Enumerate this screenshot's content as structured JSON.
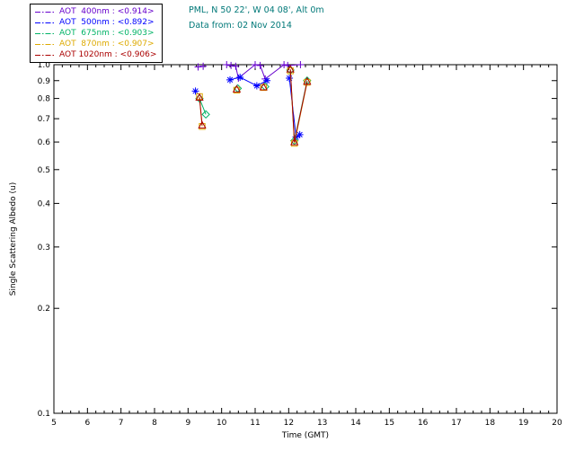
{
  "header": {
    "location": "PML, N 50 22', W 04 08', Alt 0m",
    "data_from": "Data from: 02 Nov 2014",
    "color": "#007878"
  },
  "legend": {
    "items": [
      {
        "label": "AOT  400nm : <0.914>",
        "color": "#6600cc"
      },
      {
        "label": "AOT  500nm : <0.892>",
        "color": "#0000ff"
      },
      {
        "label": "AOT  675nm : <0.903>",
        "color": "#00b366"
      },
      {
        "label": "AOT  870nm : <0.907>",
        "color": "#ddaa00"
      },
      {
        "label": "AOT 1020nm : <0.906>",
        "color": "#aa0000"
      }
    ]
  },
  "chart_data": {
    "type": "line",
    "title": "",
    "xlabel": "Time (GMT)",
    "ylabel": "Single Scattering Albedo (u)",
    "xlim": [
      5,
      20
    ],
    "ylim": [
      0.1,
      1.0
    ],
    "yscale": "log",
    "x_ticks": [
      5,
      6,
      7,
      8,
      9,
      10,
      11,
      12,
      13,
      14,
      15,
      16,
      17,
      18,
      19,
      20
    ],
    "y_ticks": [
      1.0,
      0.9,
      0.8,
      0.7,
      0.6,
      0.5,
      0.4,
      0.3,
      0.2,
      0.1
    ],
    "grid": false,
    "legend_position": "top-left",
    "gap_threshold": 0.6,
    "series": [
      {
        "name": "AOT 400nm",
        "mean": "<0.914>",
        "color": "#6600cc",
        "marker": "plus",
        "points": [
          [
            9.3,
            0.985
          ],
          [
            9.45,
            0.99
          ],
          [
            10.15,
            1.0
          ],
          [
            10.28,
            0.995
          ],
          [
            10.42,
            0.99
          ],
          [
            10.5,
            0.915
          ],
          [
            11.0,
            1.0
          ],
          [
            11.15,
            0.995
          ],
          [
            11.3,
            0.91
          ],
          [
            11.86,
            1.0
          ],
          [
            11.97,
            0.995
          ],
          [
            12.35,
            1.0
          ]
        ]
      },
      {
        "name": "AOT 500nm",
        "mean": "<0.892>",
        "color": "#0000ff",
        "marker": "asterisk",
        "points": [
          [
            9.22,
            0.84
          ],
          [
            10.25,
            0.905
          ],
          [
            10.55,
            0.92
          ],
          [
            11.05,
            0.87
          ],
          [
            11.35,
            0.9
          ],
          [
            12.02,
            0.915
          ],
          [
            12.22,
            0.62
          ],
          [
            12.33,
            0.63
          ]
        ]
      },
      {
        "name": "AOT 675nm",
        "mean": "<0.903>",
        "color": "#00b366",
        "marker": "diamond",
        "points": [
          [
            9.34,
            0.8
          ],
          [
            9.53,
            0.72
          ],
          [
            10.48,
            0.855
          ],
          [
            11.3,
            0.865
          ],
          [
            12.05,
            0.965
          ],
          [
            12.17,
            0.605
          ],
          [
            12.55,
            0.9
          ]
        ]
      },
      {
        "name": "AOT 870nm",
        "mean": "<0.907>",
        "color": "#ddaa00",
        "marker": "square",
        "points": [
          [
            9.34,
            0.81
          ],
          [
            9.42,
            0.665
          ],
          [
            10.45,
            0.845
          ],
          [
            11.25,
            0.86
          ],
          [
            12.05,
            0.96
          ],
          [
            12.17,
            0.595
          ],
          [
            12.55,
            0.89
          ]
        ]
      },
      {
        "name": "AOT 1020nm",
        "mean": "<0.906>",
        "color": "#aa0000",
        "marker": "triangle",
        "points": [
          [
            9.34,
            0.805
          ],
          [
            9.42,
            0.67
          ],
          [
            10.45,
            0.85
          ],
          [
            11.25,
            0.862
          ],
          [
            12.05,
            0.97
          ],
          [
            12.17,
            0.6
          ],
          [
            12.55,
            0.895
          ]
        ]
      }
    ]
  }
}
